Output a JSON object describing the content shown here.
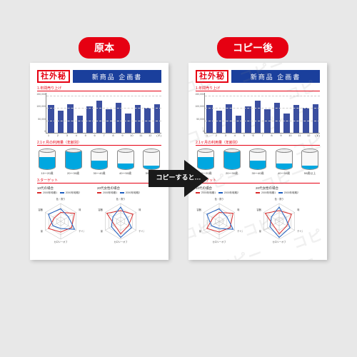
{
  "badge_original": "原本",
  "badge_copy": "コピー後",
  "arrow_text": "コピーすると…",
  "watermark_text": "コピー",
  "doc": {
    "stamp": "社外秘",
    "title": "新商品 企画書",
    "section1": "1.年間売り上げ",
    "section2": "2.1ヶ月の利用量（年齢別）",
    "section3": "3.ターゲット",
    "bar_chart": {
      "type": "bar",
      "ylim": [
        0,
        160000
      ],
      "grid_steps": [
        50000,
        100000,
        150000
      ],
      "x": [
        "1",
        "2",
        "3",
        "4",
        "5",
        "6",
        "7",
        "8",
        "9",
        "10",
        "11",
        "12"
      ],
      "unit": "(￥)",
      "values": [
        70,
        55,
        72,
        43,
        67,
        80,
        60,
        75,
        48,
        70,
        62,
        72
      ],
      "bar_color": "#3b4fa0"
    },
    "cylinders": {
      "labels": [
        "10～20歳",
        "20～30歳",
        "30～40歳",
        "40～50歳",
        "50歳以上"
      ],
      "fill_pct": [
        60,
        90,
        45,
        30,
        20
      ],
      "fill_color": "#00a7e0"
    },
    "radars": {
      "left_title": "10代の場合",
      "right_title": "20代女性の場合",
      "legend": [
        {
          "label": "2000年時期1",
          "color": "#d92b2b"
        },
        {
          "label": "2000年時期2",
          "color": "#1f5fbf"
        }
      ],
      "axes": [
        "色・香り",
        "味",
        "テイスト",
        "カロリーオフ",
        "量",
        "容器"
      ],
      "left_data": {
        "red": [
          0.5,
          0.9,
          0.7,
          0.6,
          0.8,
          0.4
        ],
        "blue": [
          0.7,
          0.5,
          0.9,
          0.4,
          0.5,
          0.8
        ]
      },
      "right_data": {
        "red": [
          0.6,
          0.8,
          0.5,
          0.7,
          0.4,
          0.9
        ],
        "blue": [
          0.8,
          0.4,
          0.7,
          0.9,
          0.6,
          0.5
        ]
      }
    }
  },
  "colors": {
    "badge_bg": "#e60012",
    "titlebar_bg": "#1a3f9c",
    "accent_red": "#e60012",
    "background": "#e8e8e8"
  }
}
